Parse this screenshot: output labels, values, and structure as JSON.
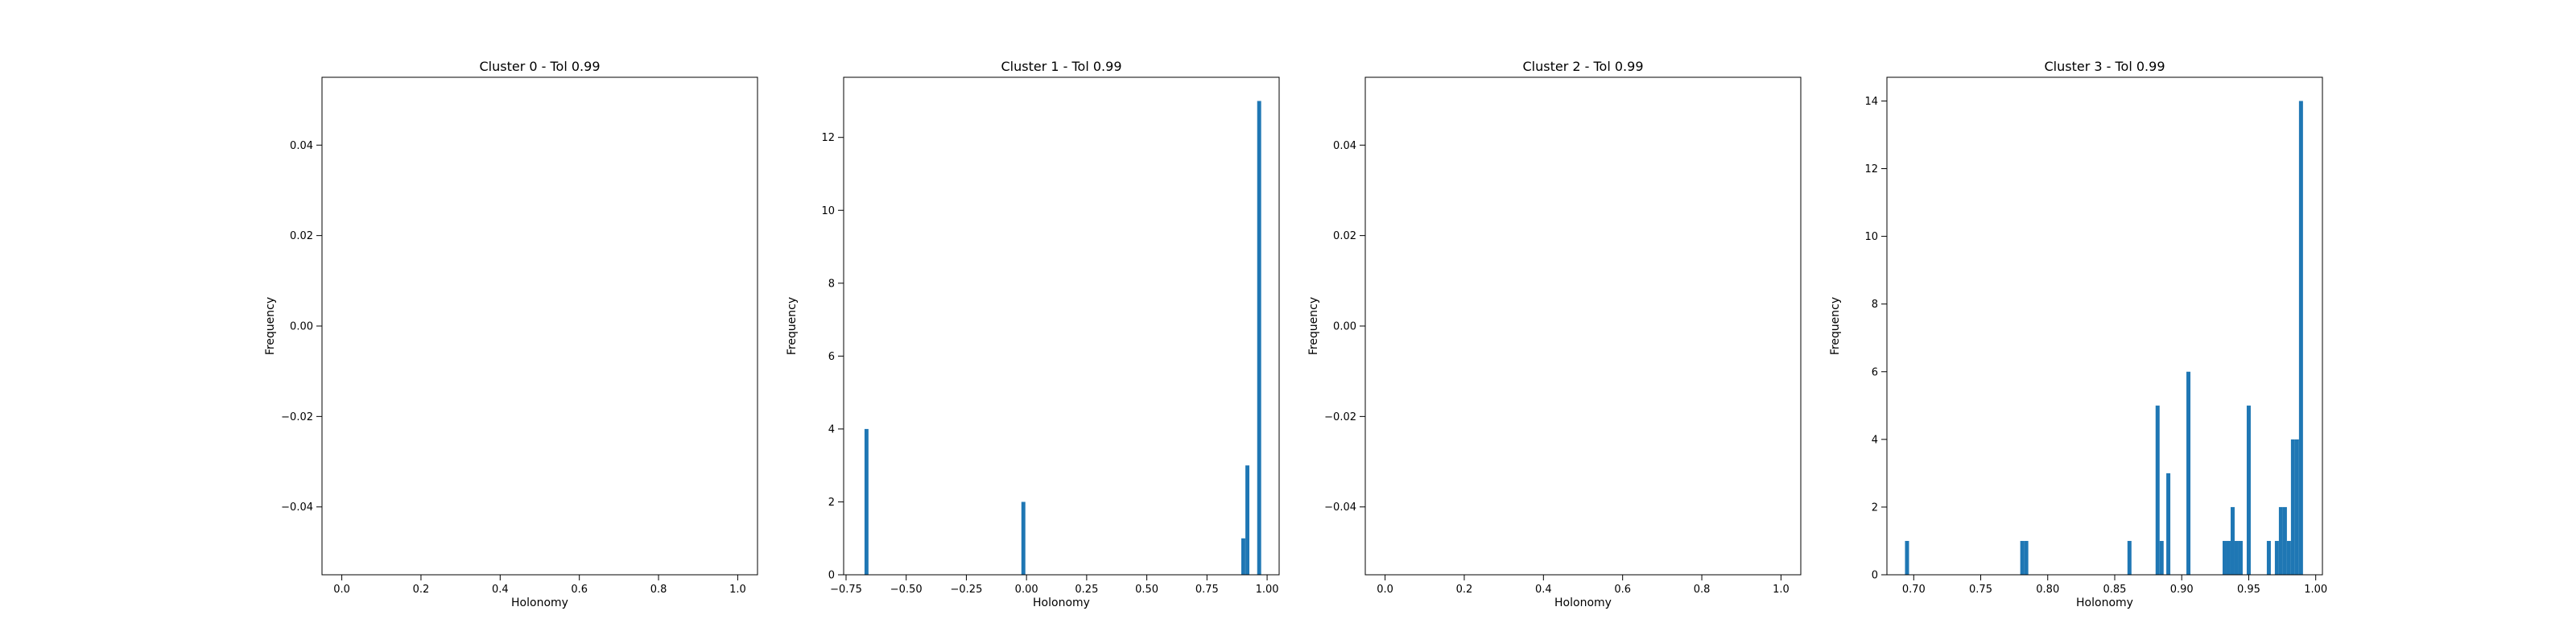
{
  "chart_data": [
    {
      "type": "bar",
      "title": "Cluster 0 - Tol 0.99",
      "xlabel": "Holonomy",
      "ylabel": "Frequency",
      "xlim": [
        -0.05,
        1.05
      ],
      "ylim": [
        -0.055,
        0.055
      ],
      "xticks": [
        0.0,
        0.2,
        0.4,
        0.6,
        0.8,
        1.0
      ],
      "xtick_labels": [
        "0.0",
        "0.2",
        "0.4",
        "0.6",
        "0.8",
        "1.0"
      ],
      "yticks": [
        -0.04,
        -0.02,
        0.0,
        0.02,
        0.04
      ],
      "ytick_labels": [
        "−0.04",
        "−0.02",
        "0.00",
        "0.02",
        "0.04"
      ],
      "bar_width": 0,
      "color": "#1f77b4",
      "bars": []
    },
    {
      "type": "bar",
      "title": "Cluster 1 - Tol 0.99",
      "xlabel": "Holonomy",
      "ylabel": "Frequency",
      "xlim": [
        -0.76,
        1.05
      ],
      "ylim": [
        0,
        13.65
      ],
      "xticks": [
        -0.75,
        -0.5,
        -0.25,
        0.0,
        0.25,
        0.5,
        0.75,
        1.0
      ],
      "xtick_labels": [
        "−0.75",
        "−0.50",
        "−0.25",
        "0.00",
        "0.25",
        "0.50",
        "0.75",
        "1.00"
      ],
      "yticks": [
        0,
        2,
        4,
        6,
        8,
        10,
        12
      ],
      "ytick_labels": [
        "0",
        "2",
        "4",
        "6",
        "8",
        "10",
        "12"
      ],
      "bar_width": 0.0165,
      "color": "#1f77b4",
      "bars": [
        {
          "x": -0.665,
          "y": 4
        },
        {
          "x": -0.013,
          "y": 2
        },
        {
          "x": 0.901,
          "y": 1
        },
        {
          "x": 0.918,
          "y": 3
        },
        {
          "x": 0.967,
          "y": 13
        }
      ]
    },
    {
      "type": "bar",
      "title": "Cluster 2 - Tol 0.99",
      "xlabel": "Holonomy",
      "ylabel": "Frequency",
      "xlim": [
        -0.05,
        1.05
      ],
      "ylim": [
        -0.055,
        0.055
      ],
      "xticks": [
        0.0,
        0.2,
        0.4,
        0.6,
        0.8,
        1.0
      ],
      "xtick_labels": [
        "0.0",
        "0.2",
        "0.4",
        "0.6",
        "0.8",
        "1.0"
      ],
      "yticks": [
        -0.04,
        -0.02,
        0.0,
        0.02,
        0.04
      ],
      "ytick_labels": [
        "−0.04",
        "−0.02",
        "0.00",
        "0.02",
        "0.04"
      ],
      "bar_width": 0,
      "color": "#1f77b4",
      "bars": []
    },
    {
      "type": "bar",
      "title": "Cluster 3 - Tol 0.99",
      "xlabel": "Holonomy",
      "ylabel": "Frequency",
      "xlim": [
        0.68,
        1.005
      ],
      "ylim": [
        0,
        14.7
      ],
      "xticks": [
        0.7,
        0.75,
        0.8,
        0.85,
        0.9,
        0.95,
        1.0
      ],
      "xtick_labels": [
        "0.70",
        "0.75",
        "0.80",
        "0.85",
        "0.90",
        "0.95",
        "1.00"
      ],
      "yticks": [
        0,
        2,
        4,
        6,
        8,
        10,
        12,
        14
      ],
      "ytick_labels": [
        "0",
        "2",
        "4",
        "6",
        "8",
        "10",
        "12",
        "14"
      ],
      "bar_width": 0.003,
      "color": "#1f77b4",
      "bars": [
        {
          "x": 0.695,
          "y": 1
        },
        {
          "x": 0.781,
          "y": 1
        },
        {
          "x": 0.784,
          "y": 1
        },
        {
          "x": 0.861,
          "y": 1
        },
        {
          "x": 0.882,
          "y": 5
        },
        {
          "x": 0.885,
          "y": 1
        },
        {
          "x": 0.89,
          "y": 3
        },
        {
          "x": 0.905,
          "y": 6
        },
        {
          "x": 0.932,
          "y": 1
        },
        {
          "x": 0.935,
          "y": 1
        },
        {
          "x": 0.938,
          "y": 2
        },
        {
          "x": 0.941,
          "y": 1
        },
        {
          "x": 0.944,
          "y": 1
        },
        {
          "x": 0.95,
          "y": 5
        },
        {
          "x": 0.965,
          "y": 1
        },
        {
          "x": 0.971,
          "y": 1
        },
        {
          "x": 0.974,
          "y": 2
        },
        {
          "x": 0.977,
          "y": 2
        },
        {
          "x": 0.98,
          "y": 1
        },
        {
          "x": 0.983,
          "y": 4
        },
        {
          "x": 0.986,
          "y": 4
        },
        {
          "x": 0.989,
          "y": 14
        }
      ]
    }
  ]
}
